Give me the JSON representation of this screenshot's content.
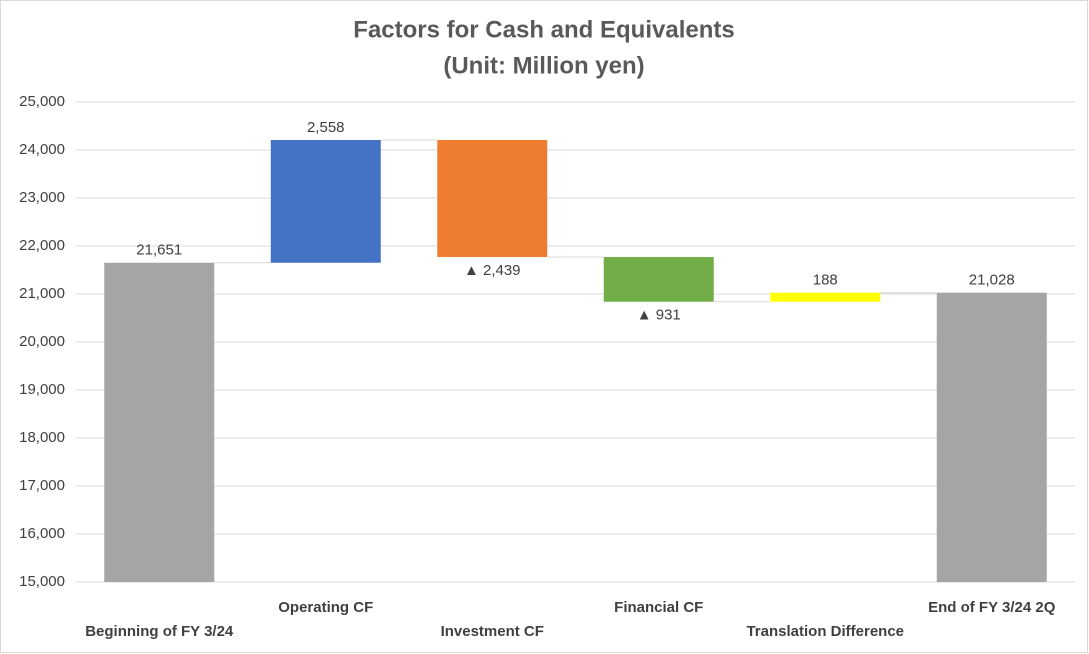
{
  "chart_data": {
    "type": "waterfall",
    "title": "Factors for Cash and Equivalents",
    "subtitle": "(Unit: Million yen)",
    "categories": [
      "Beginning of FY 3/24",
      "Operating CF",
      "Investment CF",
      "Financial CF",
      "Translation Difference",
      "End of FY 3/24 2Q"
    ],
    "values": [
      21651,
      2558,
      -2439,
      -931,
      188,
      21028
    ],
    "value_labels": [
      "21,651",
      "2,558",
      "▲ 2,439",
      "▲ 931",
      "188",
      "21,028"
    ],
    "totals": [
      true,
      false,
      false,
      false,
      false,
      true
    ],
    "colors": [
      "#a5a5a5",
      "#4472c4",
      "#ed7d31",
      "#70ad47",
      "#ffff00",
      "#a5a5a5"
    ],
    "ylim": [
      15000,
      25000
    ],
    "yticks": [
      {
        "value": 15000,
        "label": "15,000"
      },
      {
        "value": 16000,
        "label": "16,000"
      },
      {
        "value": 17000,
        "label": "17,000"
      },
      {
        "value": 18000,
        "label": "18,000"
      },
      {
        "value": 19000,
        "label": "19,000"
      },
      {
        "value": 20000,
        "label": "20,000"
      },
      {
        "value": 21000,
        "label": "21,000"
      },
      {
        "value": 22000,
        "label": "22,000"
      },
      {
        "value": 23000,
        "label": "23,000"
      },
      {
        "value": 24000,
        "label": "24,000"
      },
      {
        "value": 25000,
        "label": "25,000"
      }
    ],
    "grid": true
  }
}
